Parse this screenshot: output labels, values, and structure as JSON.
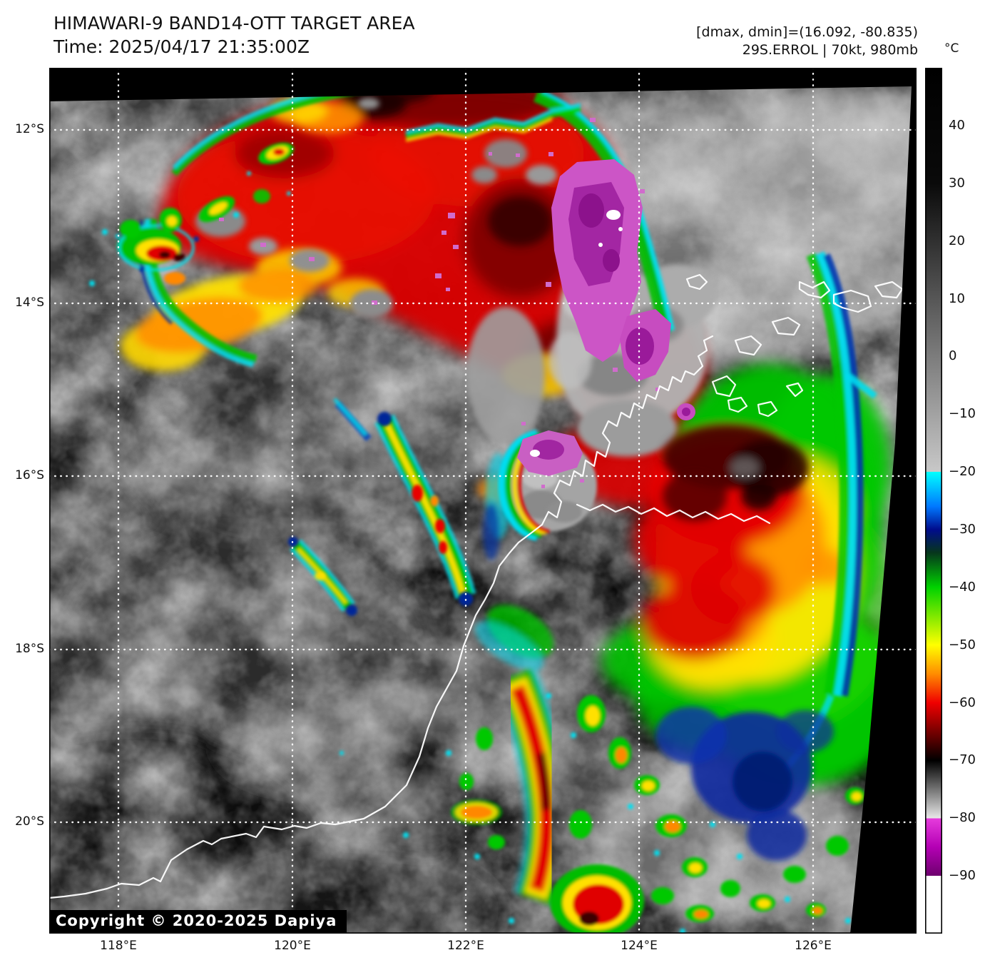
{
  "header": {
    "title": "HIMAWARI-9 BAND14-OTT TARGET AREA",
    "time_line": "Time: 2025/04/17 21:35:00Z",
    "dmax_dmin": "[dmax, dmin]=(16.092, -80.835)",
    "storm_line": "29S.ERROL | 70kt, 980mb"
  },
  "colorbar": {
    "unit": "°C",
    "ticks": [
      "40",
      "30",
      "20",
      "10",
      "0",
      "−10",
      "−20",
      "−30",
      "−40",
      "−50",
      "−60",
      "−70",
      "−80",
      "−90"
    ],
    "range_top_c": 50,
    "range_bottom_c": -100,
    "stops": [
      {
        "at": 50,
        "color": "#000000"
      },
      {
        "at": 30,
        "color": "#0a0a0a"
      },
      {
        "at": -20,
        "color": "#c8c8c8"
      },
      {
        "at": -20,
        "color": "#00ffff"
      },
      {
        "at": -26,
        "color": "#0078ff"
      },
      {
        "at": -30,
        "color": "#000c8c"
      },
      {
        "at": -34,
        "color": "#06361c"
      },
      {
        "at": -40,
        "color": "#00d200"
      },
      {
        "at": -50,
        "color": "#ffff00"
      },
      {
        "at": -55,
        "color": "#ff8c00"
      },
      {
        "at": -60,
        "color": "#f00000"
      },
      {
        "at": -66,
        "color": "#600000"
      },
      {
        "at": -70,
        "color": "#000000"
      },
      {
        "at": -80,
        "color": "#e8e8e8"
      },
      {
        "at": -80,
        "color": "#e63cdc"
      },
      {
        "at": -85,
        "color": "#b400b4"
      },
      {
        "at": -90,
        "color": "#6e006e"
      },
      {
        "at": -90,
        "color": "#ffffff"
      },
      {
        "at": -100,
        "color": "#ffffff"
      }
    ]
  },
  "axes": {
    "lat_labels": [
      "12°S",
      "14°S",
      "16°S",
      "18°S",
      "20°S"
    ],
    "lon_labels": [
      "118°E",
      "120°E",
      "122°E",
      "124°E",
      "126°E"
    ]
  },
  "map": {
    "copyright": "Copyright © 2020-2025 Dapiya",
    "satellite": "HIMAWARI-9",
    "band": "BAND14-OTT",
    "storm_id": "29S.ERROL",
    "intensity": "70kt, 980mb",
    "dmax": "16.092",
    "dmin": "-80.835"
  }
}
